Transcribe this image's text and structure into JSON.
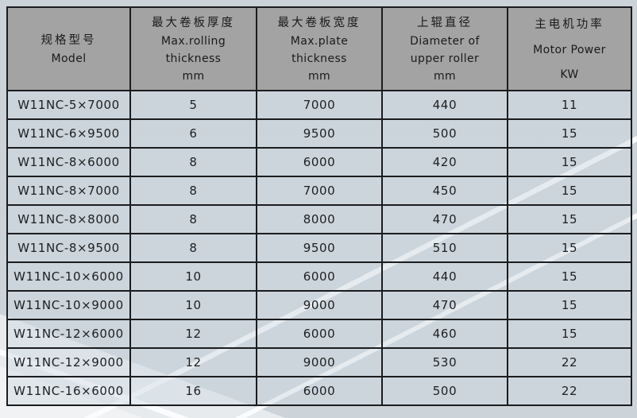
{
  "table": {
    "header": {
      "cols": [
        {
          "key": "model",
          "lines": [
            "规格型号",
            "Model"
          ]
        },
        {
          "key": "max_rolling_thickness",
          "lines": [
            "最大卷板厚度",
            "Max.rolling",
            "thickness",
            "mm"
          ]
        },
        {
          "key": "max_plate_width",
          "lines": [
            "最大卷板宽度",
            "Max.plate",
            "thickness",
            "mm"
          ]
        },
        {
          "key": "upper_roller_diameter",
          "lines": [
            "上辊直径",
            "Diameter of",
            "upper roller",
            "mm"
          ]
        },
        {
          "key": "motor_power",
          "lines": [
            "主电机功率",
            "Motor Power",
            "KW"
          ]
        }
      ]
    },
    "rows": [
      {
        "model": "W11NC-5×7000",
        "max_rolling_thickness": "5",
        "max_plate_width": "7000",
        "upper_roller_diameter": "440",
        "motor_power": "11"
      },
      {
        "model": "W11NC-6×9500",
        "max_rolling_thickness": "6",
        "max_plate_width": "9500",
        "upper_roller_diameter": "500",
        "motor_power": "15"
      },
      {
        "model": "W11NC-8×6000",
        "max_rolling_thickness": "8",
        "max_plate_width": "6000",
        "upper_roller_diameter": "420",
        "motor_power": "15"
      },
      {
        "model": "W11NC-8×7000",
        "max_rolling_thickness": "8",
        "max_plate_width": "7000",
        "upper_roller_diameter": "450",
        "motor_power": "15"
      },
      {
        "model": "W11NC-8×8000",
        "max_rolling_thickness": "8",
        "max_plate_width": "8000",
        "upper_roller_diameter": "470",
        "motor_power": "15"
      },
      {
        "model": "W11NC-8×9500",
        "max_rolling_thickness": "8",
        "max_plate_width": "9500",
        "upper_roller_diameter": "510",
        "motor_power": "15"
      },
      {
        "model": "W11NC-10×6000",
        "max_rolling_thickness": "10",
        "max_plate_width": "6000",
        "upper_roller_diameter": "440",
        "motor_power": "15"
      },
      {
        "model": "W11NC-10×9000",
        "max_rolling_thickness": "10",
        "max_plate_width": "9000",
        "upper_roller_diameter": "470",
        "motor_power": "15"
      },
      {
        "model": "W11NC-12×6000",
        "max_rolling_thickness": "12",
        "max_plate_width": "6000",
        "upper_roller_diameter": "460",
        "motor_power": "15"
      },
      {
        "model": "W11NC-12×9000",
        "max_rolling_thickness": "12",
        "max_plate_width": "9000",
        "upper_roller_diameter": "530",
        "motor_power": "22"
      },
      {
        "model": "W11NC-16×6000",
        "max_rolling_thickness": "16",
        "max_plate_width": "6000",
        "upper_roller_diameter": "500",
        "motor_power": "22"
      }
    ]
  },
  "colors": {
    "header_fill": "#a1a1a1",
    "row_fill": "#ccd6dd",
    "border": "#1b1c1e",
    "page_background": "#ccd4d9",
    "light_wedge": "#e7ebee",
    "accent_line": "#fcfdfe",
    "text": "#1d1f21"
  }
}
